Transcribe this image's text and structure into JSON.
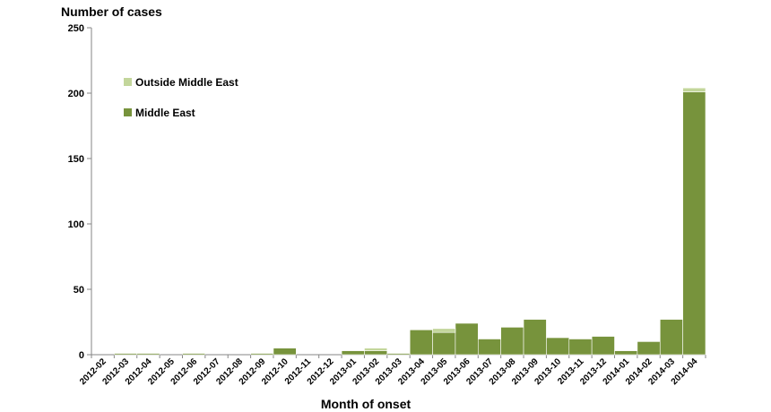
{
  "chart_data": {
    "type": "bar",
    "stacked": true,
    "ylabel": "Number of cases",
    "xlabel": "Month of onset",
    "ylim": [
      0,
      250
    ],
    "yticks": [
      0,
      50,
      100,
      150,
      200,
      250
    ],
    "grid": false,
    "legend_position": "top-left",
    "categories": [
      "2012-02",
      "2012-03",
      "2012-04",
      "2012-05",
      "2012-06",
      "2012-07",
      "2012-08",
      "2012-09",
      "2012-10",
      "2012-11",
      "2012-12",
      "2013-01",
      "2013-02",
      "2013-03",
      "2013-04",
      "2013-05",
      "2013-06",
      "2013-07",
      "2013-08",
      "2013-09",
      "2013-10",
      "2013-11",
      "2013-12",
      "2014-01",
      "2014-02",
      "2014-03",
      "2014-04"
    ],
    "series": [
      {
        "name": "Middle East",
        "color": "#77933c",
        "values": [
          0,
          1,
          1,
          0,
          1,
          0,
          0,
          1,
          5,
          0,
          0,
          3,
          3,
          1,
          19,
          17,
          24,
          12,
          21,
          27,
          13,
          12,
          14,
          3,
          10,
          27,
          201
        ]
      },
      {
        "name": "Outside Middle East",
        "color": "#c3d69b",
        "values": [
          0,
          0,
          0,
          0,
          0,
          0,
          0,
          0,
          0,
          0,
          0,
          0,
          2,
          0,
          0,
          3,
          0,
          0,
          0,
          0,
          0,
          0,
          0,
          0,
          0,
          0,
          3
        ]
      }
    ],
    "legend_order": [
      "Outside Middle East",
      "Middle East"
    ]
  }
}
